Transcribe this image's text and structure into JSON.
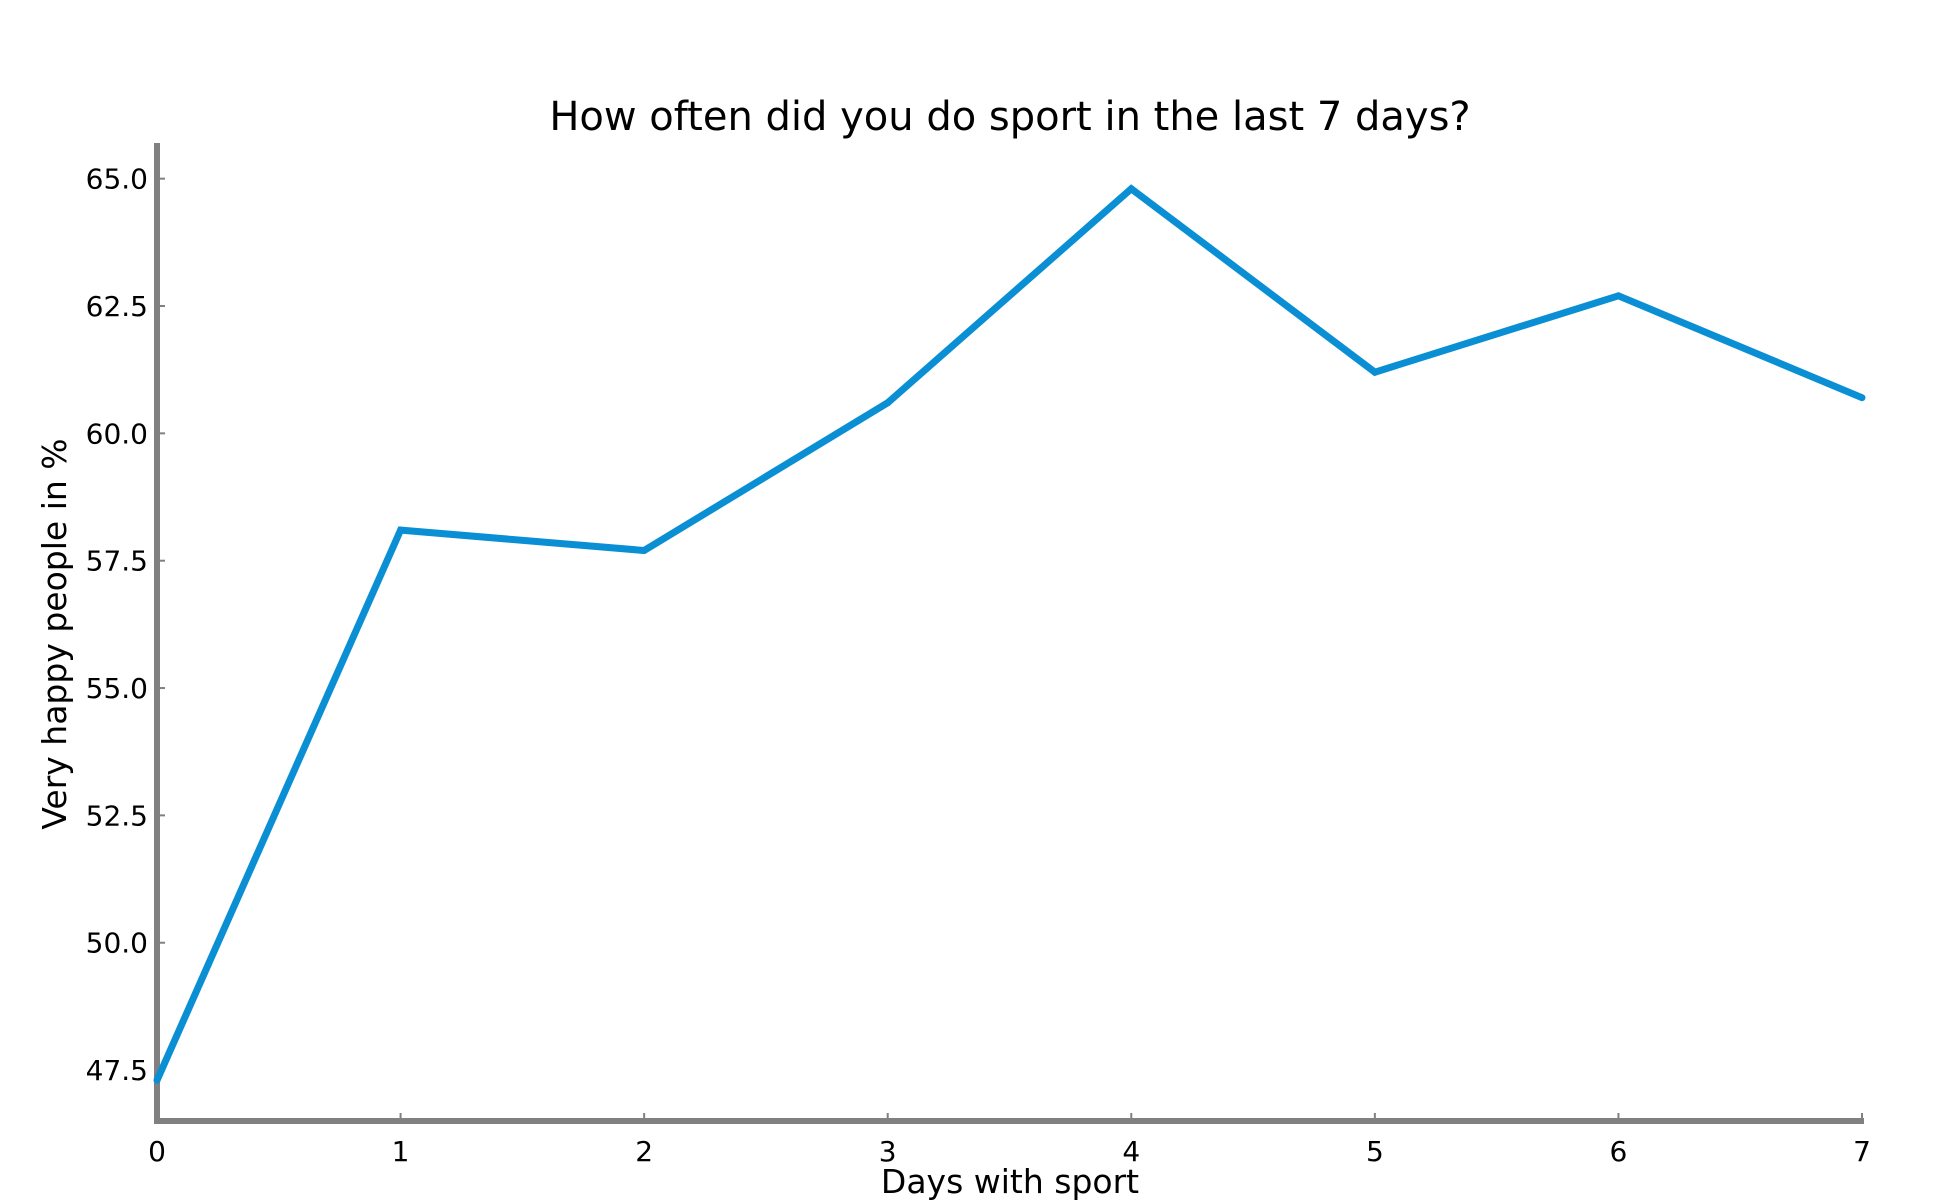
{
  "chart_data": {
    "type": "line",
    "title": "How often did you do sport in the last 7 days?",
    "xlabel": "Days with sport",
    "ylabel": "Very happy people in %",
    "x": [
      0,
      1,
      2,
      3,
      4,
      5,
      6,
      7
    ],
    "series": [
      {
        "values": [
          47.3,
          58.1,
          57.7,
          60.6,
          64.8,
          61.2,
          62.7,
          60.7
        ],
        "color": "#0a8fd4"
      }
    ],
    "xlim": [
      0,
      7
    ],
    "ylim": [
      46.5,
      65.7
    ],
    "x_ticks": [
      0,
      1,
      2,
      3,
      4,
      5,
      6,
      7
    ],
    "x_tick_labels": [
      "0",
      "1",
      "2",
      "3",
      "4",
      "5",
      "6",
      "7"
    ],
    "y_ticks": [
      47.5,
      50.0,
      52.5,
      55.0,
      57.5,
      60.0,
      62.5,
      65.0
    ],
    "y_tick_labels": [
      "47.5",
      "50.0",
      "52.5",
      "55.0",
      "57.5",
      "60.0",
      "62.5",
      "65.0"
    ],
    "grid": false,
    "legend": "none",
    "axis_color": "#808080"
  }
}
